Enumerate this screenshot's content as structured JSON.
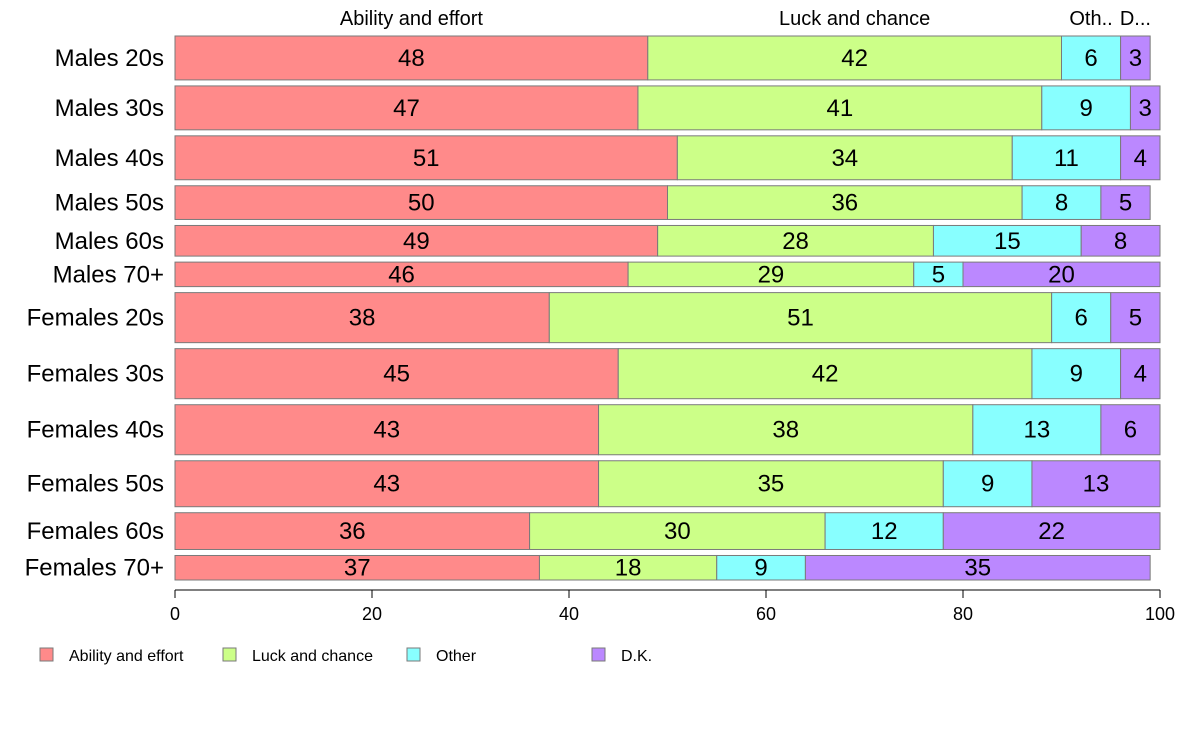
{
  "chart_data": {
    "type": "bar",
    "orientation": "horizontal",
    "stacked": true,
    "xlim": [
      0,
      100
    ],
    "xticks": [
      0,
      20,
      40,
      60,
      80,
      100
    ],
    "column_headers": [
      "Ability and effort",
      "Luck and chance",
      "Oth..",
      "D..."
    ],
    "categories": [
      "Males 20s",
      "Males 30s",
      "Males 40s",
      "Males 50s",
      "Males 60s",
      "Males 70+",
      "Females 20s",
      "Females 30s",
      "Females 40s",
      "Females 50s",
      "Females 60s",
      "Females 70+"
    ],
    "relative_widths": [
      43,
      43,
      43,
      33,
      30,
      24,
      49,
      49,
      49,
      45,
      36,
      24
    ],
    "series": [
      {
        "name": "Ability and effort",
        "color": "#FF8A8A",
        "values": [
          48,
          47,
          51,
          50,
          49,
          46,
          38,
          45,
          43,
          43,
          36,
          37
        ]
      },
      {
        "name": "Luck and chance",
        "color": "#CCFF88",
        "values": [
          42,
          41,
          34,
          36,
          28,
          29,
          51,
          42,
          38,
          35,
          30,
          18
        ]
      },
      {
        "name": "Other",
        "color": "#88FFFF",
        "values": [
          6,
          9,
          11,
          8,
          15,
          5,
          6,
          9,
          13,
          9,
          12,
          9
        ]
      },
      {
        "name": "D.K.",
        "color": "#BB88FF",
        "values": [
          3,
          3,
          4,
          5,
          8,
          20,
          5,
          4,
          6,
          13,
          22,
          35
        ]
      }
    ],
    "legend": {
      "position": "bottom-left",
      "entries": [
        "Ability and effort",
        "Luck and chance",
        "Other",
        "D.K."
      ]
    }
  }
}
